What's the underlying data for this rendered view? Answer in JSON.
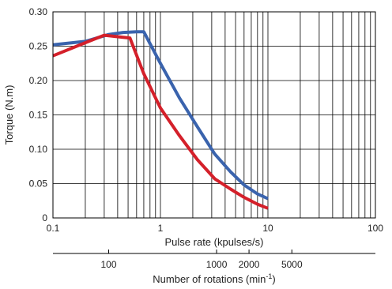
{
  "chart_data": {
    "type": "line",
    "x_scale": "log",
    "xlim": [
      0.1,
      100
    ],
    "ylim": [
      0,
      0.3
    ],
    "xlabel": "Pulse rate (kpulses/s)",
    "ylabel": "Torque (N.m)",
    "x_tick_labels": [
      "0.1",
      "1",
      "10",
      "100"
    ],
    "x_tick_values": [
      0.1,
      1,
      10,
      100
    ],
    "y_tick_labels": [
      "0",
      "0.05",
      "0.10",
      "0.15",
      "0.20",
      "0.25",
      "0.30"
    ],
    "y_tick_values": [
      0,
      0.05,
      0.1,
      0.15,
      0.2,
      0.25,
      0.3
    ],
    "grid": true,
    "secondary_axis": {
      "label": "Number of rotations (min",
      "label_superscript": "-1",
      "label_suffix": ")",
      "ticks": [
        {
          "label": "100",
          "value": 0.33
        },
        {
          "label": "1000",
          "value": 3.33
        },
        {
          "label": "2000",
          "value": 6.67
        },
        {
          "label": "5000",
          "value": 16.7
        }
      ]
    },
    "series": [
      {
        "color": "#3a63ad",
        "x": [
          0.1,
          0.2,
          0.33,
          0.45,
          0.6,
          0.7,
          1.0,
          1.5,
          2.2,
          3.2,
          4.5,
          6.0,
          8.0,
          10.0
        ],
        "y": [
          0.252,
          0.257,
          0.267,
          0.27,
          0.271,
          0.271,
          0.225,
          0.175,
          0.133,
          0.093,
          0.067,
          0.048,
          0.035,
          0.028
        ]
      },
      {
        "color": "#d4202a",
        "x": [
          0.1,
          0.2,
          0.3,
          0.45,
          0.52,
          0.7,
          1.0,
          1.5,
          2.2,
          3.2,
          4.5,
          6.0,
          8.0,
          10.0
        ],
        "y": [
          0.236,
          0.255,
          0.266,
          0.263,
          0.262,
          0.21,
          0.16,
          0.12,
          0.085,
          0.057,
          0.042,
          0.03,
          0.02,
          0.014
        ]
      }
    ]
  }
}
